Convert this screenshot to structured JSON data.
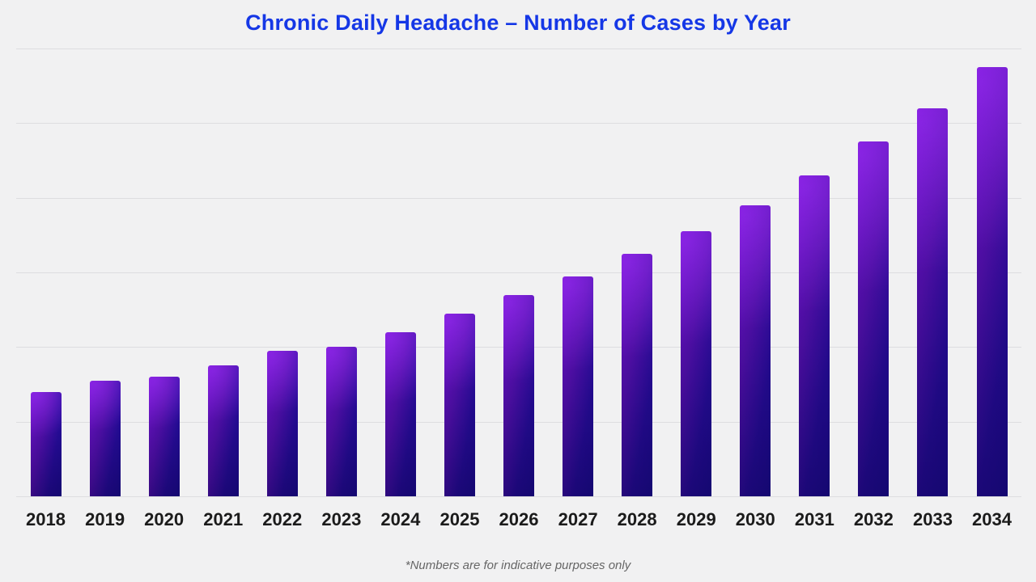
{
  "title": "Chronic Daily Headache – Number of Cases by Year",
  "footnote": "*Numbers are for indicative purposes only",
  "colors": {
    "background": "#f1f1f2",
    "title_text": "#1537e6",
    "axis_label_text": "#1b1b1b",
    "footnote_text": "#666666",
    "gridline": "#dddde0",
    "bar_gradient_left": "#7714d6",
    "bar_gradient_right": "#1f0b9a"
  },
  "chart_data": {
    "type": "bar",
    "title": "Chronic Daily Headache – Number of Cases by Year",
    "categories": [
      "2018",
      "2019",
      "2020",
      "2021",
      "2022",
      "2023",
      "2024",
      "2025",
      "2026",
      "2027",
      "2028",
      "2029",
      "2030",
      "2031",
      "2032",
      "2033",
      "2034"
    ],
    "values": [
      1.4,
      1.55,
      1.6,
      1.75,
      1.95,
      2.0,
      2.2,
      2.45,
      2.7,
      2.95,
      3.25,
      3.55,
      3.9,
      4.3,
      4.75,
      5.2,
      5.75
    ],
    "xlabel": "",
    "ylabel": "",
    "ylim": [
      0,
      6
    ],
    "y_axis_tick_labels_visible": false,
    "value_units": "gridline units (y-axis unlabeled; heights estimated against 6 evenly spaced horizontal gridlines)",
    "horizontal_gridline_count": 7,
    "grid": "horizontal only",
    "legend": "none",
    "bar_style": "purple-to-navy diagonal gradient, slightly rounded top corners"
  }
}
